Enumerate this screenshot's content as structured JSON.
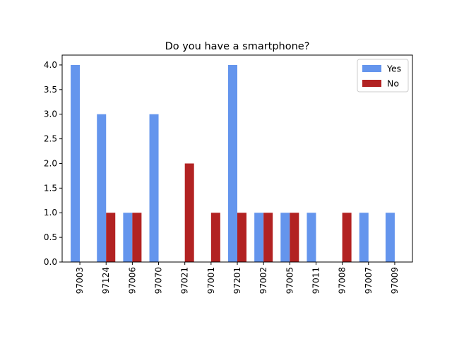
{
  "chart_data": {
    "type": "bar",
    "title": "Do you have a smartphone?",
    "xlabel": "",
    "ylabel": "",
    "categories": [
      "97003",
      "97124",
      "97006",
      "97070",
      "97021",
      "97001",
      "97201",
      "97002",
      "97005",
      "97011",
      "97008",
      "97007",
      "97009"
    ],
    "series": [
      {
        "name": "Yes",
        "color": "#6495ED",
        "values": [
          4,
          3,
          1,
          3,
          0,
          0,
          4,
          1,
          1,
          1,
          0,
          1,
          1
        ]
      },
      {
        "name": "No",
        "color": "#B22222",
        "values": [
          0,
          1,
          1,
          0,
          2,
          1,
          1,
          1,
          1,
          0,
          1,
          0,
          0
        ]
      }
    ],
    "ylim": [
      0,
      4.2
    ],
    "yticks": [
      "0.0",
      "0.5",
      "1.0",
      "1.5",
      "2.0",
      "2.5",
      "3.0",
      "3.5",
      "4.0"
    ],
    "grid": false,
    "legend_position": "top-right"
  }
}
